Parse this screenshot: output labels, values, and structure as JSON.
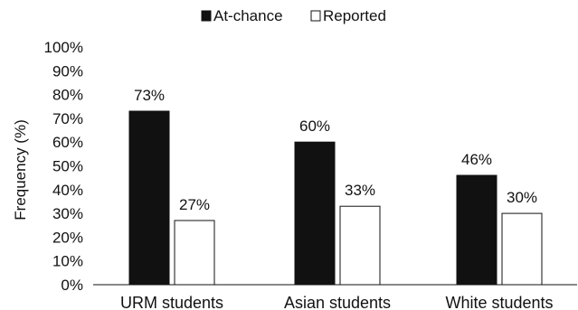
{
  "chart_data": {
    "type": "bar",
    "categories": [
      "URM students",
      "Asian students",
      "White students"
    ],
    "series": [
      {
        "name": "At-chance",
        "values": [
          73,
          60,
          46
        ],
        "color": "#111111"
      },
      {
        "name": "Reported",
        "values": [
          27,
          33,
          30
        ],
        "color": "#ffffff"
      }
    ],
    "data_labels": [
      [
        "73%",
        "60%",
        "46%"
      ],
      [
        "27%",
        "33%",
        "30%"
      ]
    ],
    "ylabel": "Frequency (%)",
    "xlabel": "",
    "ylim": [
      0,
      100
    ],
    "yticks": [
      0,
      10,
      20,
      30,
      40,
      50,
      60,
      70,
      80,
      90,
      100
    ],
    "ytick_labels": [
      "0%",
      "10%",
      "20%",
      "30%",
      "40%",
      "50%",
      "60%",
      "70%",
      "80%",
      "90%",
      "100%"
    ],
    "grid": false,
    "legend_position": "top-center"
  }
}
